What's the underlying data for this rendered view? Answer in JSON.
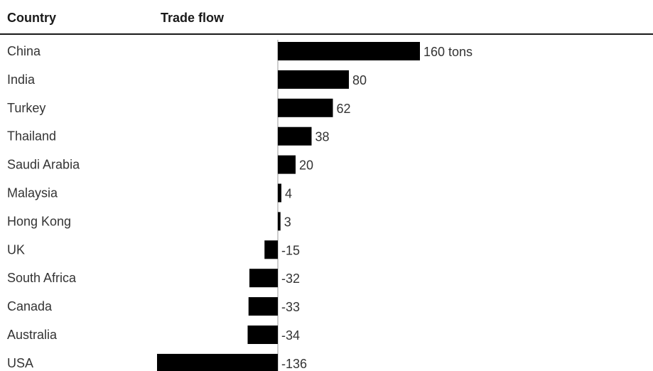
{
  "header": {
    "country_label": "Country",
    "flow_label": "Trade flow"
  },
  "chart_data": {
    "type": "bar",
    "orientation": "horizontal",
    "categories": [
      "China",
      "India",
      "Turkey",
      "Thailand",
      "Saudi Arabia",
      "Malaysia",
      "Hong Kong",
      "UK",
      "South Africa",
      "Canada",
      "Australia",
      "USA"
    ],
    "values": [
      160,
      80,
      62,
      38,
      20,
      4,
      3,
      -15,
      -32,
      -33,
      -34,
      -136
    ],
    "value_labels": [
      "160 tons",
      "80",
      "62",
      "38",
      "20",
      "4",
      "3",
      "-15",
      "-32",
      "-33",
      "-34",
      "-136"
    ],
    "bar_color": "#000000",
    "xlim": [
      -136,
      160
    ],
    "grid": false
  }
}
